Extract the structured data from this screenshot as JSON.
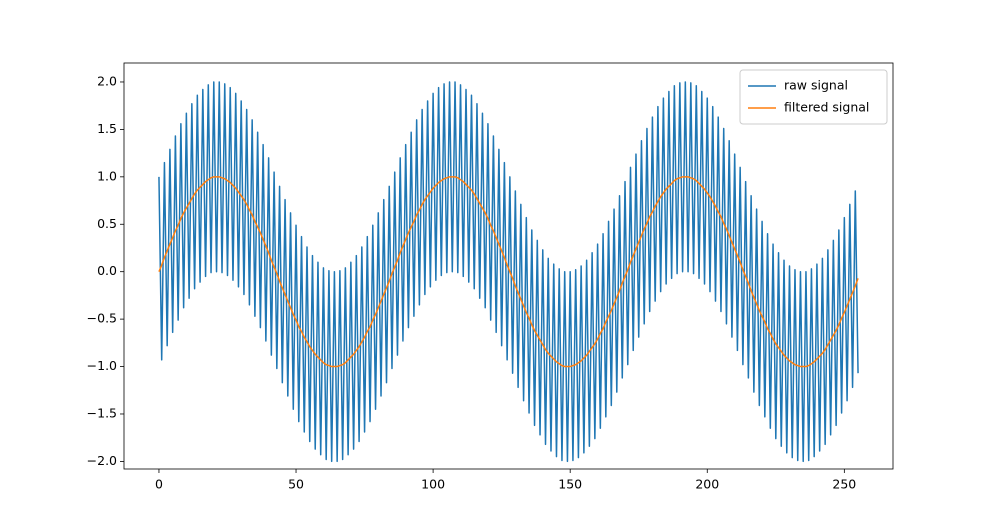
{
  "chart_data": {
    "type": "line",
    "legend": "upper right",
    "xlim": [
      -12.75,
      267.75
    ],
    "ylim": [
      -2.08,
      2.2
    ],
    "xticks": [
      0,
      50,
      100,
      150,
      200,
      250
    ],
    "yticks": [
      {
        "value": -2.0,
        "label": "−2.0"
      },
      {
        "value": -1.5,
        "label": "−1.5"
      },
      {
        "value": -1.0,
        "label": "−1.0"
      },
      {
        "value": -0.5,
        "label": "−0.5"
      },
      {
        "value": 0.0,
        "label": "0.0"
      },
      {
        "value": 0.5,
        "label": "0.5"
      },
      {
        "value": 1.0,
        "label": "1.0"
      },
      {
        "value": 1.5,
        "label": "1.5"
      },
      {
        "value": 2.0,
        "label": "2.0"
      }
    ],
    "x": [
      0,
      1,
      2,
      3,
      4,
      5,
      6,
      7,
      8,
      9,
      10,
      11,
      12,
      13,
      14,
      15,
      16,
      17,
      18,
      19,
      20,
      21,
      22,
      23,
      24,
      25,
      26,
      27,
      28,
      29,
      30,
      31,
      32,
      33,
      34,
      35,
      36,
      37,
      38,
      39,
      40,
      41,
      42,
      43,
      44,
      45,
      46,
      47,
      48,
      49,
      50,
      51,
      52,
      53,
      54,
      55,
      56,
      57,
      58,
      59,
      60,
      61,
      62,
      63,
      64,
      65,
      66,
      67,
      68,
      69,
      70,
      71,
      72,
      73,
      74,
      75,
      76,
      77,
      78,
      79,
      80,
      81,
      82,
      83,
      84,
      85,
      86,
      87,
      88,
      89,
      90,
      91,
      92,
      93,
      94,
      95,
      96,
      97,
      98,
      99,
      100,
      101,
      102,
      103,
      104,
      105,
      106,
      107,
      108,
      109,
      110,
      111,
      112,
      113,
      114,
      115,
      116,
      117,
      118,
      119,
      120,
      121,
      122,
      123,
      124,
      125,
      126,
      127,
      128,
      129,
      130,
      131,
      132,
      133,
      134,
      135,
      136,
      137,
      138,
      139,
      140,
      141,
      142,
      143,
      144,
      145,
      146,
      147,
      148,
      149,
      150,
      151,
      152,
      153,
      154,
      155,
      156,
      157,
      158,
      159,
      160,
      161,
      162,
      163,
      164,
      165,
      166,
      167,
      168,
      169,
      170,
      171,
      172,
      173,
      174,
      175,
      176,
      177,
      178,
      179,
      180,
      181,
      182,
      183,
      184,
      185,
      186,
      187,
      188,
      189,
      190,
      191,
      192,
      193,
      194,
      195,
      196,
      197,
      198,
      199,
      200,
      201,
      202,
      203,
      204,
      205,
      206,
      207,
      208,
      209,
      210,
      211,
      212,
      213,
      214,
      215,
      216,
      217,
      218,
      219,
      220,
      221,
      222,
      223,
      224,
      225,
      226,
      227,
      228,
      229,
      230,
      231,
      232,
      233,
      234,
      235,
      236,
      237,
      238,
      239,
      240,
      241,
      242,
      243,
      244,
      245,
      246,
      247,
      248,
      249,
      250,
      251,
      252,
      253,
      254,
      255
    ],
    "series": [
      {
        "name": "raw signal",
        "color": "#1f77b4",
        "values": [
          1,
          -0.93,
          1.15,
          -0.78,
          1.29,
          -0.64,
          1.43,
          -0.51,
          1.56,
          -0.38,
          1.67,
          -0.28,
          1.77,
          -0.18,
          1.86,
          -0.11,
          1.92,
          -0.05,
          1.97,
          -0.01,
          2.0,
          0.0,
          2.0,
          -0.01,
          1.98,
          -0.04,
          1.94,
          -0.09,
          1.88,
          -0.16,
          1.8,
          -0.24,
          1.71,
          -0.35,
          1.6,
          -0.47,
          1.47,
          -0.59,
          1.34,
          -0.73,
          1.2,
          -0.88,
          1.05,
          -1.02,
          0.9,
          -1.17,
          0.76,
          -1.31,
          0.62,
          -1.45,
          0.49,
          -1.58,
          0.37,
          -1.69,
          0.26,
          -1.79,
          0.17,
          -1.87,
          0.1,
          -1.93,
          0.04,
          -1.98,
          0.01,
          -2.0,
          0.0,
          -2.0,
          0.01,
          -1.98,
          0.04,
          -1.93,
          0.1,
          -1.87,
          0.17,
          -1.79,
          0.26,
          -1.69,
          0.37,
          -1.58,
          0.49,
          -1.45,
          0.62,
          -1.31,
          0.76,
          -1.17,
          0.9,
          -1.02,
          1.05,
          -0.88,
          1.2,
          -0.73,
          1.34,
          -0.59,
          1.47,
          -0.47,
          1.6,
          -0.35,
          1.71,
          -0.24,
          1.8,
          -0.16,
          1.88,
          -0.09,
          1.94,
          -0.04,
          1.98,
          -0.01,
          2.0,
          0.0,
          2.0,
          -0.01,
          1.97,
          -0.05,
          1.92,
          -0.11,
          1.86,
          -0.18,
          1.77,
          -0.28,
          1.67,
          -0.38,
          1.56,
          -0.51,
          1.43,
          -0.64,
          1.29,
          -0.78,
          1.15,
          -0.93,
          1,
          -1.07,
          0.85,
          -1.22,
          0.71,
          -1.36,
          0.57,
          -1.49,
          0.44,
          -1.62,
          0.33,
          -1.72,
          0.23,
          -1.82,
          0.14,
          -1.89,
          0.08,
          -1.95,
          0.03,
          -1.99,
          0.0,
          -2.0,
          0.0,
          -1.99,
          0.02,
          -1.96,
          0.06,
          -1.91,
          0.12,
          -1.84,
          0.2,
          -1.76,
          0.29,
          -1.65,
          0.4,
          -1.53,
          0.53,
          -1.41,
          0.66,
          -1.27,
          0.8,
          -1.12,
          0.95,
          -0.98,
          1.1,
          -0.83,
          1.24,
          -0.69,
          1.38,
          -0.55,
          1.51,
          -0.42,
          1.63,
          -0.31,
          1.74,
          -0.21,
          1.83,
          -0.13,
          1.9,
          -0.07,
          1.96,
          -0.02,
          1.99,
          0.0,
          2.0,
          0.0,
          1.99,
          -0.02,
          1.96,
          -0.07,
          1.9,
          -0.13,
          1.83,
          -0.21,
          1.74,
          -0.31,
          1.63,
          -0.42,
          1.51,
          -0.55,
          1.38,
          -0.69,
          1.24,
          -0.83,
          1.1,
          -0.98,
          0.95,
          -1.12,
          0.8,
          -1.27,
          0.66,
          -1.41,
          0.53,
          -1.53,
          0.4,
          -1.65,
          0.29,
          -1.76,
          0.2,
          -1.84,
          0.12,
          -1.91,
          0.06,
          -1.96,
          0.02,
          -1.99,
          0.0,
          -2.0,
          0.0,
          -1.99,
          0.03,
          -1.95,
          0.08,
          -1.89,
          0.14,
          -1.82,
          0.23,
          -1.72,
          0.33,
          -1.62,
          0.44,
          -1.49,
          0.57,
          -1.36,
          0.71,
          -1.22,
          0.85,
          -1.07
        ]
      },
      {
        "name": "filtered signal",
        "color": "#ff7f0e",
        "values": [
          0,
          0.07,
          0.15,
          0.22,
          0.29,
          0.36,
          0.43,
          0.49,
          0.56,
          0.62,
          0.67,
          0.72,
          0.77,
          0.82,
          0.86,
          0.89,
          0.92,
          0.95,
          0.97,
          0.99,
          1.0,
          1.0,
          1.0,
          0.99,
          0.98,
          0.96,
          0.94,
          0.91,
          0.88,
          0.84,
          0.8,
          0.76,
          0.71,
          0.65,
          0.6,
          0.53,
          0.47,
          0.41,
          0.34,
          0.27,
          0.2,
          0.12,
          0.05,
          -0.02,
          -0.1,
          -0.17,
          -0.24,
          -0.31,
          -0.38,
          -0.45,
          -0.51,
          -0.58,
          -0.63,
          -0.69,
          -0.74,
          -0.79,
          -0.83,
          -0.87,
          -0.9,
          -0.93,
          -0.96,
          -0.98,
          -0.99,
          -1.0,
          -1.0,
          -1.0,
          -0.99,
          -0.98,
          -0.96,
          -0.93,
          -0.9,
          -0.87,
          -0.83,
          -0.79,
          -0.74,
          -0.69,
          -0.63,
          -0.58,
          -0.51,
          -0.45,
          -0.38,
          -0.31,
          -0.24,
          -0.17,
          -0.1,
          -0.02,
          0.05,
          0.12,
          0.2,
          0.27,
          0.34,
          0.41,
          0.47,
          0.53,
          0.6,
          0.65,
          0.71,
          0.76,
          0.8,
          0.84,
          0.88,
          0.91,
          0.94,
          0.96,
          0.98,
          0.99,
          1.0,
          1.0,
          1.0,
          0.99,
          0.97,
          0.95,
          0.92,
          0.89,
          0.86,
          0.82,
          0.77,
          0.72,
          0.67,
          0.62,
          0.56,
          0.49,
          0.43,
          0.36,
          0.29,
          0.22,
          0.15,
          0.07,
          0,
          -0.07,
          -0.15,
          -0.22,
          -0.29,
          -0.36,
          -0.43,
          -0.49,
          -0.56,
          -0.62,
          -0.67,
          -0.72,
          -0.77,
          -0.82,
          -0.86,
          -0.89,
          -0.92,
          -0.95,
          -0.97,
          -0.99,
          -1.0,
          -1.0,
          -1.0,
          -0.99,
          -0.98,
          -0.96,
          -0.94,
          -0.91,
          -0.88,
          -0.84,
          -0.8,
          -0.76,
          -0.71,
          -0.65,
          -0.6,
          -0.53,
          -0.47,
          -0.41,
          -0.34,
          -0.27,
          -0.2,
          -0.12,
          -0.05,
          0.02,
          0.1,
          0.17,
          0.24,
          0.31,
          0.38,
          0.45,
          0.51,
          0.58,
          0.63,
          0.69,
          0.74,
          0.79,
          0.83,
          0.87,
          0.9,
          0.93,
          0.96,
          0.98,
          0.99,
          1.0,
          1.0,
          1.0,
          0.99,
          0.98,
          0.96,
          0.93,
          0.9,
          0.87,
          0.83,
          0.79,
          0.74,
          0.69,
          0.63,
          0.58,
          0.51,
          0.45,
          0.38,
          0.31,
          0.24,
          0.17,
          0.1,
          0.02,
          -0.05,
          -0.12,
          -0.2,
          -0.27,
          -0.34,
          -0.41,
          -0.47,
          -0.53,
          -0.6,
          -0.65,
          -0.71,
          -0.76,
          -0.8,
          -0.84,
          -0.88,
          -0.91,
          -0.94,
          -0.96,
          -0.98,
          -0.99,
          -1.0,
          -1.0,
          -1.0,
          -0.99,
          -0.97,
          -0.95,
          -0.92,
          -0.89,
          -0.86,
          -0.82,
          -0.77,
          -0.72,
          -0.67,
          -0.62,
          -0.56,
          -0.49,
          -0.43,
          -0.36,
          -0.29,
          -0.22,
          -0.15,
          -0.07
        ]
      }
    ]
  }
}
